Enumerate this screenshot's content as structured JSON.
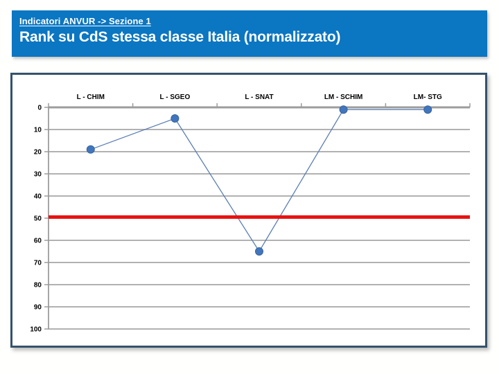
{
  "slide": {
    "background_color": "#FFFFFE"
  },
  "header": {
    "breadcrumb": "Indicatori ANVUR -> Sezione 1",
    "title": "Rank su CdS stessa classe Italia (normalizzato)",
    "background_color": "#0B76C2",
    "text_color": "#FFFFFF"
  },
  "chart_data": {
    "type": "line",
    "categories": [
      "L - CHIM",
      "L - SGEO",
      "L - SNAT",
      "LM - SCHIM",
      "LM- STG"
    ],
    "values": [
      19,
      5,
      65,
      1,
      1
    ],
    "ylim": [
      0,
      100
    ],
    "y_axis_inverted": true,
    "y_ticks": [
      0,
      10,
      20,
      30,
      40,
      50,
      60,
      70,
      80,
      90,
      100
    ],
    "grid": true,
    "legend": "none",
    "reference_line": {
      "value": 49.5,
      "color": "#E8120F",
      "thickness": 5
    },
    "line_color": "#5B7FB5",
    "marker_color": "#4176BE",
    "marker_edge_color": "#38649C",
    "gridline_color": "#A6A6A6",
    "axis_color": "#9C9C9C",
    "label_color": "#000000",
    "panel_border_color": "#34526C"
  }
}
